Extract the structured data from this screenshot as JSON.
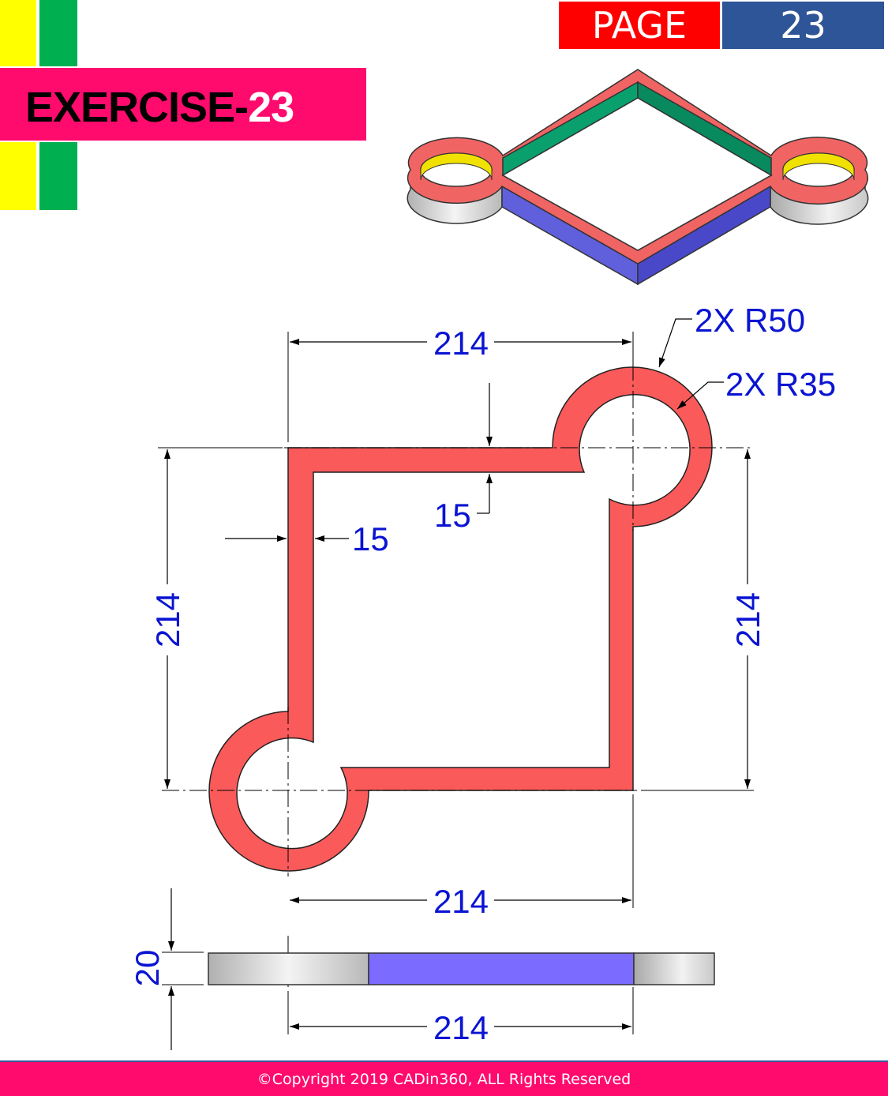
{
  "header": {
    "page_label": "PAGE",
    "page_number": "23",
    "exercise_prefix": "EXERCISE-",
    "exercise_number": "23"
  },
  "drawing": {
    "dim_top_width": "214",
    "dim_left_height": "214",
    "dim_right_height": "214",
    "dim_bottom_width": "214",
    "dim_side_width": "214",
    "dim_wall_left": "15",
    "dim_wall_top": "15",
    "dim_thickness": "20",
    "callout_outer_radius": "2X R50",
    "callout_inner_radius": "2X R35"
  },
  "colors": {
    "part_fill": "#fa5a5a",
    "dimension_text": "#0a14d2",
    "top_face_iso": "#f06464",
    "inner_wall_iso": "#0aa06e",
    "outer_wall_iso": "#6060dc",
    "bore_iso": "#f0e100",
    "banner": "#ff0b6e",
    "page_label_bg": "#ff0000",
    "page_number_bg": "#2e5597"
  },
  "footer": {
    "copyright": "©Copyright 2019 CADin360, ALL Rights Reserved"
  }
}
